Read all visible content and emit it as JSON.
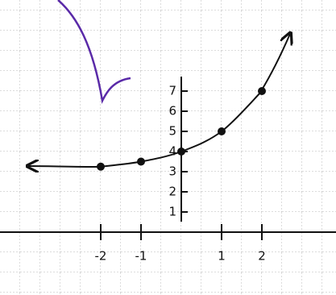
{
  "chart_data": {
    "type": "line",
    "x": [
      -2,
      -1,
      0,
      1,
      2
    ],
    "values": [
      3.25,
      3.5,
      4,
      5,
      7
    ],
    "color": "#111111",
    "xlim": [
      -4.5,
      3.84
    ],
    "ylim": [
      -3.12,
      11.52
    ],
    "xticks": [
      -2,
      -1,
      1,
      2
    ],
    "yticks": [
      1,
      2,
      3,
      4,
      5,
      6,
      7
    ],
    "grid": true
  }
}
